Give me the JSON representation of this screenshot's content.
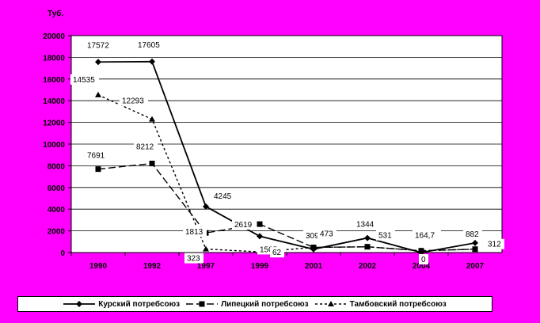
{
  "chart_data": {
    "type": "line",
    "ylabel": "Туб.",
    "categories": [
      "1990",
      "1992",
      "1997",
      "1999",
      "2001",
      "2002",
      "2004",
      "2007"
    ],
    "ylim": [
      0,
      20000
    ],
    "yticks": [
      "0",
      "2000",
      "4000",
      "6000",
      "8000",
      "10000",
      "12000",
      "14000",
      "16000",
      "18000",
      "20000"
    ],
    "grid": true,
    "legend": "bottom",
    "series": [
      {
        "name": "Курский потребсоюз",
        "values": [
          17572,
          17605,
          4245,
          1505,
          309,
          1344,
          0,
          882
        ],
        "labels": [
          "17572",
          "17605",
          "4245",
          "1505",
          "309",
          "1344",
          "0",
          "882"
        ],
        "marker": "diamond",
        "dash": "solid",
        "color": "#000000"
      },
      {
        "name": "Липецкий потребсоюз",
        "values": [
          7691,
          8212,
          1813,
          2619,
          473,
          531,
          164.7,
          312
        ],
        "labels": [
          "7691",
          "8212",
          "1813",
          "2619",
          "473",
          "531",
          "164,7",
          "312"
        ],
        "marker": "square",
        "dash": "dashed",
        "color": "#000000"
      },
      {
        "name": "Тамбовский потребсоюз",
        "values": [
          14535,
          12293,
          323,
          62,
          473,
          531,
          164.7,
          312
        ],
        "labels": [
          "14535",
          "12293",
          "323",
          "62",
          "",
          "",
          "",
          ""
        ],
        "marker": "triangle",
        "dash": "dotted",
        "color": "#000000"
      }
    ]
  }
}
